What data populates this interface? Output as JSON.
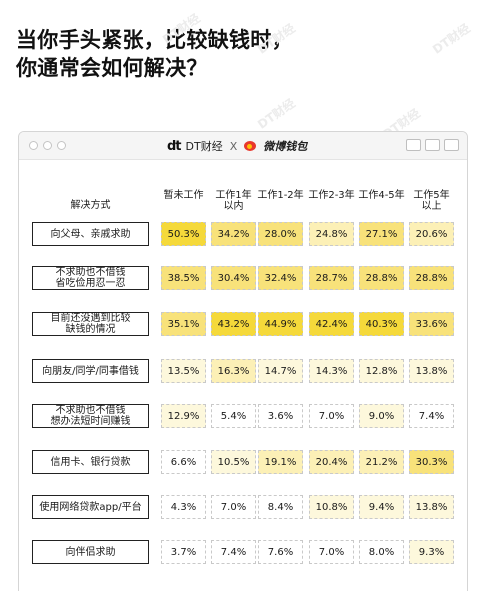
{
  "headline": {
    "line1": "当你手头紧张，比较缺钱时，",
    "line2": "你通常会如何解决？"
  },
  "watermarks": [
    "DT财经",
    "DT财经",
    "DT财经",
    "DT财经",
    "DT财经",
    "DT财经"
  ],
  "window": {
    "brand_left": "DT财经",
    "brand_left_mark": "dt",
    "brand_separator": "X",
    "brand_right": "微博钱包"
  },
  "colors": {
    "high": "#f5d93a",
    "mid": "#f8e27a",
    "low": "#fcf0b6",
    "faint": "#fdf8dc",
    "none": "#ffffff"
  },
  "chart_data": {
    "type": "table",
    "row_header": "解决方式",
    "columns": [
      "暂未工作",
      "工作1年以内",
      "工作1-2年",
      "工作2-3年",
      "工作4-5年",
      "工作5年以上"
    ],
    "column_labels_display": [
      [
        "暂未工作"
      ],
      [
        "工作1年",
        "以内"
      ],
      [
        "工作1-2年"
      ],
      [
        "工作2-3年"
      ],
      [
        "工作4-5年"
      ],
      [
        "工作5年",
        "以上"
      ]
    ],
    "rows": [
      {
        "label": [
          "向父母、亲戚求助"
        ],
        "values": [
          "50.3%",
          "34.2%",
          "28.0%",
          "24.8%",
          "27.1%",
          "20.6%"
        ]
      },
      {
        "label": [
          "不求助也不借钱",
          "省吃俭用忍一忍"
        ],
        "values": [
          "38.5%",
          "30.4%",
          "32.4%",
          "28.7%",
          "28.8%",
          "28.8%"
        ]
      },
      {
        "label": [
          "目前还没遇到比较",
          "缺钱的情况"
        ],
        "values": [
          "35.1%",
          "43.2%",
          "44.9%",
          "42.4%",
          "40.3%",
          "33.6%"
        ]
      },
      {
        "label": [
          "向朋友/同学/同事借钱"
        ],
        "values": [
          "13.5%",
          "16.3%",
          "14.7%",
          "14.3%",
          "12.8%",
          "13.8%"
        ]
      },
      {
        "label": [
          "不求助也不借钱",
          "想办法短时间赚钱"
        ],
        "values": [
          "12.9%",
          "5.4%",
          "3.6%",
          "7.0%",
          "9.0%",
          "7.4%"
        ]
      },
      {
        "label": [
          "信用卡、银行贷款"
        ],
        "values": [
          "6.6%",
          "10.5%",
          "19.1%",
          "20.4%",
          "21.2%",
          "30.3%"
        ]
      },
      {
        "label": [
          "使用网络贷款app/平台"
        ],
        "values": [
          "4.3%",
          "7.0%",
          "8.4%",
          "10.8%",
          "9.4%",
          "13.8%"
        ]
      },
      {
        "label": [
          "向伴侣求助"
        ],
        "values": [
          "3.7%",
          "7.4%",
          "7.6%",
          "7.0%",
          "8.0%",
          "9.3%"
        ]
      }
    ]
  }
}
